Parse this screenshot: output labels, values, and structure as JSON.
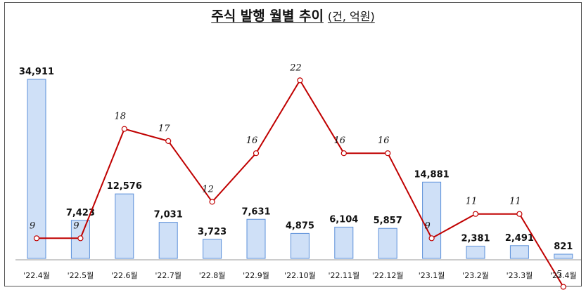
{
  "chart_data": {
    "type": "bar",
    "title": "주식 발행 월별 추이",
    "unit_note": "(건, 억원)",
    "categories": [
      "'22.4월",
      "'22.5월",
      "'22.6월",
      "'22.7월",
      "'22.8월",
      "'22.9월",
      "'22.10월",
      "'22.11월",
      "'22.12월",
      "'23.1월",
      "'23.2월",
      "'23.3월",
      "'23.4월"
    ],
    "series": [
      {
        "type": "bar",
        "values": [
          34911,
          7423,
          12576,
          7031,
          3723,
          7631,
          4875,
          6104,
          5857,
          14881,
          2381,
          2491,
          821
        ],
        "labels": [
          "34,911",
          "7,423",
          "12,576",
          "7,031",
          "3,723",
          "7,631",
          "4,875",
          "6,104",
          "5,857",
          "14,881",
          "2,381",
          "2,491",
          "821"
        ],
        "color": "#cfe0f7"
      },
      {
        "type": "line",
        "values": [
          9,
          9,
          18,
          17,
          12,
          16,
          22,
          16,
          16,
          9,
          11,
          11,
          5
        ],
        "color": "#c00000"
      }
    ],
    "legend": "none",
    "grid": false
  }
}
